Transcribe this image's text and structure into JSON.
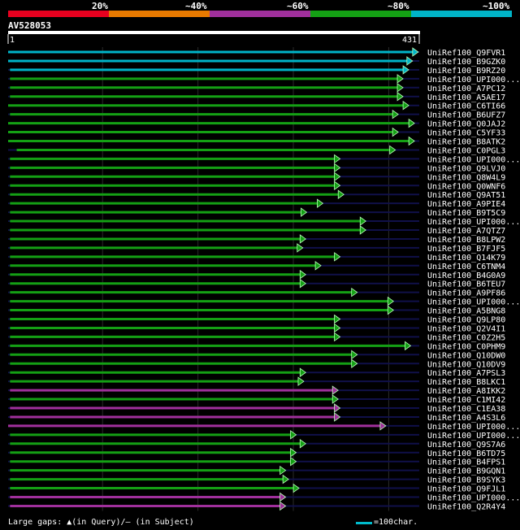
{
  "legend": {
    "labels": [
      "20%",
      "~40%",
      "~60%",
      "~80%",
      "~100%"
    ],
    "colors": [
      "#e8001f",
      "#e87a00",
      "#a0309c",
      "#14a014",
      "#00b4c8"
    ]
  },
  "query": {
    "name": "AV528053",
    "start_label": "1",
    "end_label": "431",
    "length": 431
  },
  "footer": {
    "gaps_text": "Large gaps: ▲(in Query)/– (in Subject)",
    "scale_text": "=100char."
  },
  "chart_data": {
    "type": "alignment-hits",
    "query_length": 431,
    "grid_ticks": [
      100,
      200,
      300,
      400
    ],
    "hits": [
      {
        "name": "UniRef100_Q9FVR1",
        "start": 1,
        "end": 431,
        "color": "#00b4c8"
      },
      {
        "name": "UniRef100_B9GZK0",
        "start": 1,
        "end": 425,
        "color": "#00b4c8"
      },
      {
        "name": "UniRef100_B9RZ20",
        "start": 3,
        "end": 421,
        "color": "#00b4c8"
      },
      {
        "name": "UniRef100_UPI000...",
        "start": 3,
        "end": 415,
        "color": "#14a014"
      },
      {
        "name": "UniRef100_A7PC12",
        "start": 3,
        "end": 415,
        "color": "#14a014"
      },
      {
        "name": "UniRef100_A5AE17",
        "start": 3,
        "end": 415,
        "color": "#14a014"
      },
      {
        "name": "UniRef100_C6TI66",
        "start": 1,
        "end": 421,
        "color": "#14a014"
      },
      {
        "name": "UniRef100_B6UFZ7",
        "start": 3,
        "end": 410,
        "color": "#14a014"
      },
      {
        "name": "UniRef100_Q0JAJ2",
        "start": 1,
        "end": 427,
        "color": "#14a014"
      },
      {
        "name": "UniRef100_C5YF33",
        "start": 1,
        "end": 410,
        "color": "#14a014"
      },
      {
        "name": "UniRef100_B8ATK2",
        "start": 1,
        "end": 427,
        "color": "#14a014"
      },
      {
        "name": "UniRef100_C0PGL3",
        "start": 10,
        "end": 407,
        "color": "#14a014"
      },
      {
        "name": "UniRef100_UPI000...",
        "start": 3,
        "end": 349,
        "color": "#14a014"
      },
      {
        "name": "UniRef100_Q9LVJ0",
        "start": 3,
        "end": 349,
        "color": "#14a014"
      },
      {
        "name": "UniRef100_Q8W4L9",
        "start": 3,
        "end": 349,
        "color": "#14a014"
      },
      {
        "name": "UniRef100_Q0WNF6",
        "start": 3,
        "end": 349,
        "color": "#14a014"
      },
      {
        "name": "UniRef100_Q9AT51",
        "start": 3,
        "end": 353,
        "color": "#14a014"
      },
      {
        "name": "UniRef100_A9PIE4",
        "start": 3,
        "end": 331,
        "color": "#14a014"
      },
      {
        "name": "UniRef100_B9T5C9",
        "start": 3,
        "end": 314,
        "color": "#14a014"
      },
      {
        "name": "UniRef100_UPI000...",
        "start": 3,
        "end": 376,
        "color": "#14a014"
      },
      {
        "name": "UniRef100_A7QTZ7",
        "start": 3,
        "end": 376,
        "color": "#14a014"
      },
      {
        "name": "UniRef100_B8LPW2",
        "start": 3,
        "end": 313,
        "color": "#14a014"
      },
      {
        "name": "UniRef100_B7FJF5",
        "start": 3,
        "end": 310,
        "color": "#14a014"
      },
      {
        "name": "UniRef100_Q14K79",
        "start": 3,
        "end": 349,
        "color": "#14a014"
      },
      {
        "name": "UniRef100_C6TNM4",
        "start": 3,
        "end": 329,
        "color": "#14a014"
      },
      {
        "name": "UniRef100_B4G0A9",
        "start": 3,
        "end": 313,
        "color": "#14a014"
      },
      {
        "name": "UniRef100_B6TEU7",
        "start": 3,
        "end": 313,
        "color": "#14a014"
      },
      {
        "name": "UniRef100_A9PF86",
        "start": 3,
        "end": 367,
        "color": "#14a014"
      },
      {
        "name": "UniRef100_UPI000...",
        "start": 3,
        "end": 405,
        "color": "#14a014"
      },
      {
        "name": "UniRef100_A5BNG8",
        "start": 3,
        "end": 405,
        "color": "#14a014"
      },
      {
        "name": "UniRef100_Q9LP80",
        "start": 3,
        "end": 349,
        "color": "#14a014"
      },
      {
        "name": "UniRef100_Q2V4I1",
        "start": 3,
        "end": 349,
        "color": "#14a014"
      },
      {
        "name": "UniRef100_C0Z2H5",
        "start": 3,
        "end": 349,
        "color": "#14a014"
      },
      {
        "name": "UniRef100_C0PHM9",
        "start": 3,
        "end": 423,
        "color": "#14a014"
      },
      {
        "name": "UniRef100_Q10DW0",
        "start": 3,
        "end": 367,
        "color": "#14a014"
      },
      {
        "name": "UniRef100_Q10DV9",
        "start": 3,
        "end": 367,
        "color": "#14a014"
      },
      {
        "name": "UniRef100_A7PSL3",
        "start": 3,
        "end": 313,
        "color": "#14a014"
      },
      {
        "name": "UniRef100_B8LKC1",
        "start": 3,
        "end": 311,
        "color": "#14a014"
      },
      {
        "name": "UniRef100_A8IKK2",
        "start": 3,
        "end": 347,
        "color": "#a0309c"
      },
      {
        "name": "UniRef100_C1MI42",
        "start": 3,
        "end": 347,
        "color": "#14a014"
      },
      {
        "name": "UniRef100_C1EA38",
        "start": 3,
        "end": 349,
        "color": "#a0309c"
      },
      {
        "name": "UniRef100_A4S3L6",
        "start": 3,
        "end": 349,
        "color": "#a0309c"
      },
      {
        "name": "UniRef100_UPI000...",
        "start": 1,
        "end": 397,
        "color": "#a0309c"
      },
      {
        "name": "UniRef100_UPI000...",
        "start": 3,
        "end": 303,
        "color": "#14a014"
      },
      {
        "name": "UniRef100_Q9S7A6",
        "start": 3,
        "end": 313,
        "color": "#14a014"
      },
      {
        "name": "UniRef100_B6TD75",
        "start": 3,
        "end": 303,
        "color": "#14a014"
      },
      {
        "name": "UniRef100_B4FPS1",
        "start": 3,
        "end": 303,
        "color": "#14a014"
      },
      {
        "name": "UniRef100_B9GQN1",
        "start": 3,
        "end": 292,
        "color": "#14a014"
      },
      {
        "name": "UniRef100_B9SYK3",
        "start": 3,
        "end": 295,
        "color": "#14a014"
      },
      {
        "name": "UniRef100_Q9FJL1",
        "start": 3,
        "end": 306,
        "color": "#14a014"
      },
      {
        "name": "UniRef100_UPI000...",
        "start": 3,
        "end": 292,
        "color": "#a0309c"
      },
      {
        "name": "UniRef100_Q2R4Y4",
        "start": 3,
        "end": 292,
        "color": "#a0309c"
      }
    ]
  }
}
